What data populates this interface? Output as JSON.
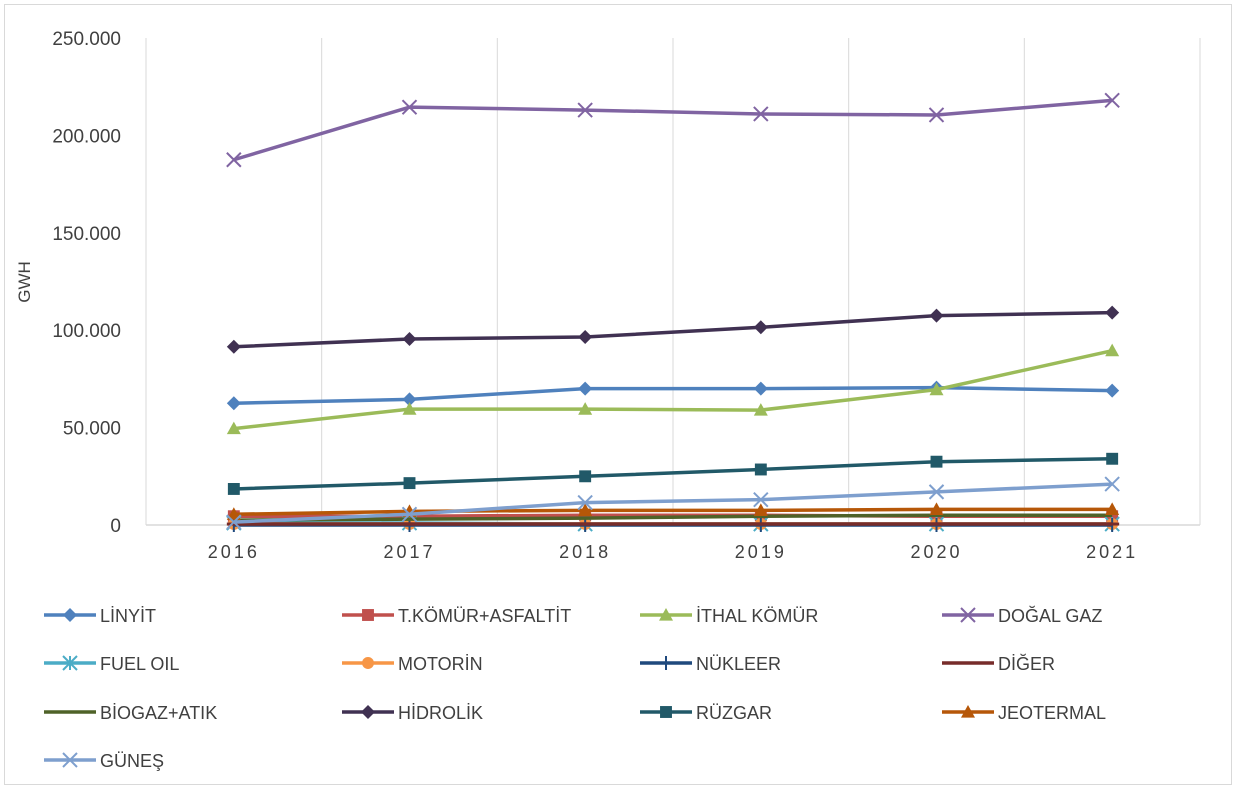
{
  "chart_data": {
    "type": "line",
    "title": "",
    "xlabel": "",
    "ylabel": "GWH",
    "categories": [
      "2016",
      "2017",
      "2018",
      "2019",
      "2020",
      "2021"
    ],
    "ylim": [
      0,
      250000
    ],
    "yticks": [
      0,
      50000,
      100000,
      150000,
      200000,
      250000
    ],
    "ytick_labels": [
      "0",
      "50.000",
      "100.000",
      "150.000",
      "200.000",
      "250.000"
    ],
    "grid": "vertical",
    "legend_position": "bottom",
    "series": [
      {
        "name": "LİNYİT",
        "color": "#4f81bd",
        "marker": "diamond",
        "values": [
          62500,
          64500,
          70000,
          70000,
          70500,
          69000
        ]
      },
      {
        "name": "T.KÖMÜR+ASFALTİT",
        "color": "#c0504d",
        "marker": "square",
        "values": [
          4500,
          4500,
          5000,
          5000,
          4500,
          4500
        ]
      },
      {
        "name": "İTHAL KÖMÜR",
        "color": "#9bbb59",
        "marker": "triangle",
        "values": [
          49500,
          59500,
          59500,
          59000,
          69500,
          89500
        ]
      },
      {
        "name": "DOĞAL GAZ",
        "color": "#8064a2",
        "marker": "x",
        "values": [
          187500,
          214500,
          213000,
          211000,
          210500,
          218000
        ]
      },
      {
        "name": "FUEL OIL",
        "color": "#4bacc6",
        "marker": "star",
        "values": [
          1000,
          1000,
          500,
          500,
          500,
          500
        ]
      },
      {
        "name": "MOTORİN",
        "color": "#f79646",
        "marker": "circle",
        "values": [
          500,
          500,
          500,
          500,
          500,
          500
        ]
      },
      {
        "name": "NÜKLEER",
        "color": "#1f497d",
        "marker": "plus",
        "values": [
          0,
          0,
          0,
          0,
          0,
          0
        ]
      },
      {
        "name": "DİĞER",
        "color": "#772c2a",
        "marker": "dash",
        "values": [
          500,
          500,
          500,
          500,
          500,
          500
        ]
      },
      {
        "name": "BİOGAZ+ATIK",
        "color": "#4f6228",
        "marker": "none",
        "values": [
          2500,
          3000,
          3500,
          4500,
          5000,
          5000
        ]
      },
      {
        "name": "HİDROLİK",
        "color": "#403152",
        "marker": "diamond",
        "values": [
          91500,
          95500,
          96500,
          101500,
          107500,
          109000
        ]
      },
      {
        "name": "RÜZGAR",
        "color": "#215968",
        "marker": "square",
        "values": [
          18500,
          21500,
          25000,
          28500,
          32500,
          34000
        ]
      },
      {
        "name": "JEOTERMAL",
        "color": "#b65708",
        "marker": "triangle",
        "values": [
          5500,
          7000,
          7500,
          7500,
          8000,
          8000
        ]
      },
      {
        "name": "GÜNEŞ",
        "color": "#7e9fce",
        "marker": "x",
        "values": [
          1500,
          5500,
          11500,
          13000,
          17000,
          21000
        ]
      }
    ]
  }
}
